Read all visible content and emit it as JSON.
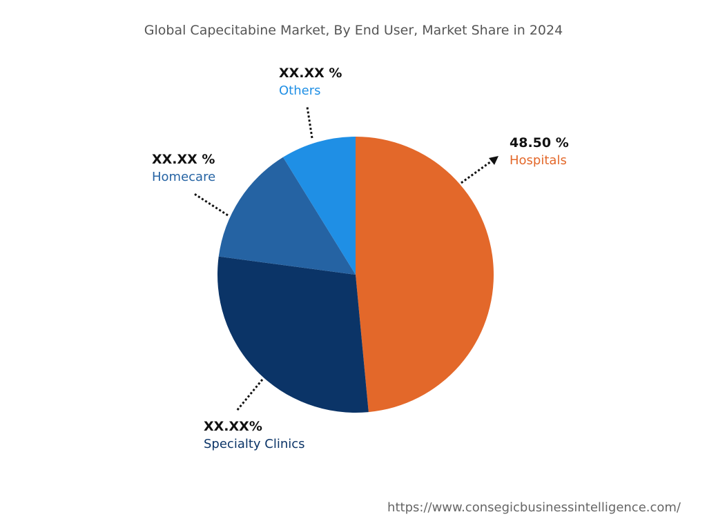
{
  "chart_data": {
    "type": "pie",
    "title": "Global Capecitabine Market, By End User, Market Share in 2024",
    "start_angle": "12 o'clock, clockwise",
    "slices": [
      {
        "name": "Hospitals",
        "value": 48.5,
        "label": "48.50 %",
        "color": "#E3682A"
      },
      {
        "name": "Specialty Clinics",
        "value": 28.6,
        "label": "XX.XX%",
        "color": "#0B3467"
      },
      {
        "name": "Homecare",
        "value": 14.1,
        "label": "XX.XX %",
        "color": "#2563A3"
      },
      {
        "name": "Others",
        "value": 8.8,
        "label": "XX.XX %",
        "color": "#1F8FE5"
      }
    ]
  },
  "footer": {
    "url": "https://www.consegicbusinessintelligence.com/"
  }
}
